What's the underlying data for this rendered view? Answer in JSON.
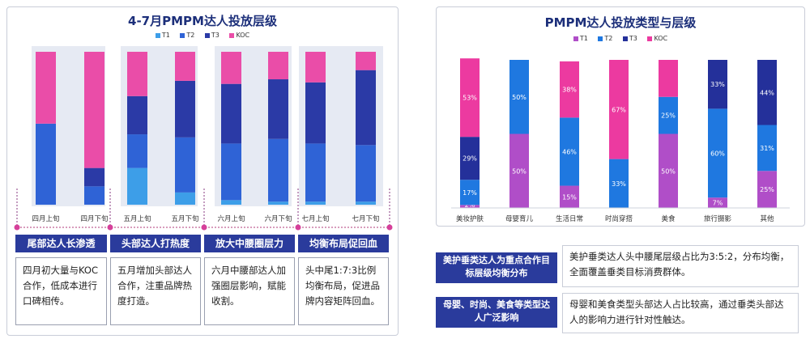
{
  "left_chart": {
    "title": "4-7月PMPM达人投放层级",
    "legend": [
      "T1",
      "T2",
      "T3",
      "KOC"
    ],
    "groups": [
      "尾部达人长渗透",
      "头部达人打热度",
      "放大中腰圈层力",
      "均衡布局促回血"
    ],
    "descriptions": [
      "四月初大量与KOC合作，低成本进行口碑相传。",
      "五月增加头部达人合作，注重品牌热度打造。",
      "六月中腰部达人加强圈层影响，赋能收割。",
      "头中尾1:7:3比例均衡布局，促进品牌内容矩阵回血。"
    ]
  },
  "right_chart": {
    "title": "PMPM达人投放类型与层级",
    "legend": [
      "T1",
      "T2",
      "T3",
      "KOC"
    ]
  },
  "right_notes": [
    {
      "tag": "美护垂类达人为重点合作目标层级均衡分布",
      "text": "美护垂类达人头中腰尾层级占比为3:5:2，分布均衡，全面覆盖垂类目标消费群体。"
    },
    {
      "tag": "母婴、时尚、美食等类型达人广泛影响",
      "text": "母婴和美食类型头部达人占比较高，通过垂类头部达人的影响力进行针对性触达。"
    }
  ],
  "colors": {
    "T1": "#3d9ee8",
    "T2": "#2f63d6",
    "T3": "#2b3aa6",
    "KOC": "#ea4da8",
    "T1_right": "#b04ec8",
    "T2_right": "#1f78e0",
    "T3_right": "#24309a",
    "KOC_right": "#ec3aa0"
  },
  "chart_data": [
    {
      "type": "bar",
      "stacked": true,
      "title": "4-7月PMPM达人投放层级",
      "categories": [
        "四月上旬",
        "四月下旬",
        "五月上旬",
        "五月下旬",
        "六月上旬",
        "六月下旬",
        "七月上旬",
        "七月下旬"
      ],
      "series": [
        {
          "name": "T1",
          "values": [
            0,
            0,
            24,
            8,
            3,
            2,
            2,
            2
          ]
        },
        {
          "name": "T2",
          "values": [
            53,
            12,
            22,
            36,
            37,
            41,
            38,
            37
          ]
        },
        {
          "name": "T3",
          "values": [
            0,
            12,
            25,
            37,
            39,
            39,
            40,
            49
          ]
        },
        {
          "name": "KOC",
          "values": [
            47,
            76,
            29,
            19,
            21,
            18,
            20,
            12
          ]
        }
      ],
      "ylim": [
        0,
        100
      ]
    },
    {
      "type": "bar",
      "stacked": true,
      "title": "PMPM达人投放类型与层级",
      "categories": [
        "美妆护肤",
        "母婴育儿",
        "生活日常",
        "时尚穿搭",
        "美食",
        "旅行摄影",
        "其他"
      ],
      "series": [
        {
          "name": "T1",
          "values": [
            2,
            50,
            15,
            0,
            50,
            7,
            25
          ]
        },
        {
          "name": "T2",
          "values": [
            17,
            50,
            46,
            33,
            25,
            60,
            31
          ]
        },
        {
          "name": "T3",
          "values": [
            29,
            0,
            0,
            0,
            0,
            33,
            44
          ]
        },
        {
          "name": "KOC",
          "values": [
            53,
            0,
            38,
            67,
            25,
            0,
            0
          ]
        }
      ],
      "data_labels": [
        [
          "2%",
          "17%",
          "29%",
          "53%"
        ],
        [
          "50%",
          "50%",
          "",
          ""
        ],
        [
          "15%",
          "46%",
          "",
          "38%"
        ],
        [
          "",
          "33%",
          "",
          "67%"
        ],
        [
          "50%",
          "25%",
          "",
          ""
        ],
        [
          "7%",
          "60%",
          "33%",
          ""
        ],
        [
          "25%",
          "31%",
          "44%",
          ""
        ]
      ],
      "ylim": [
        0,
        100
      ]
    }
  ]
}
